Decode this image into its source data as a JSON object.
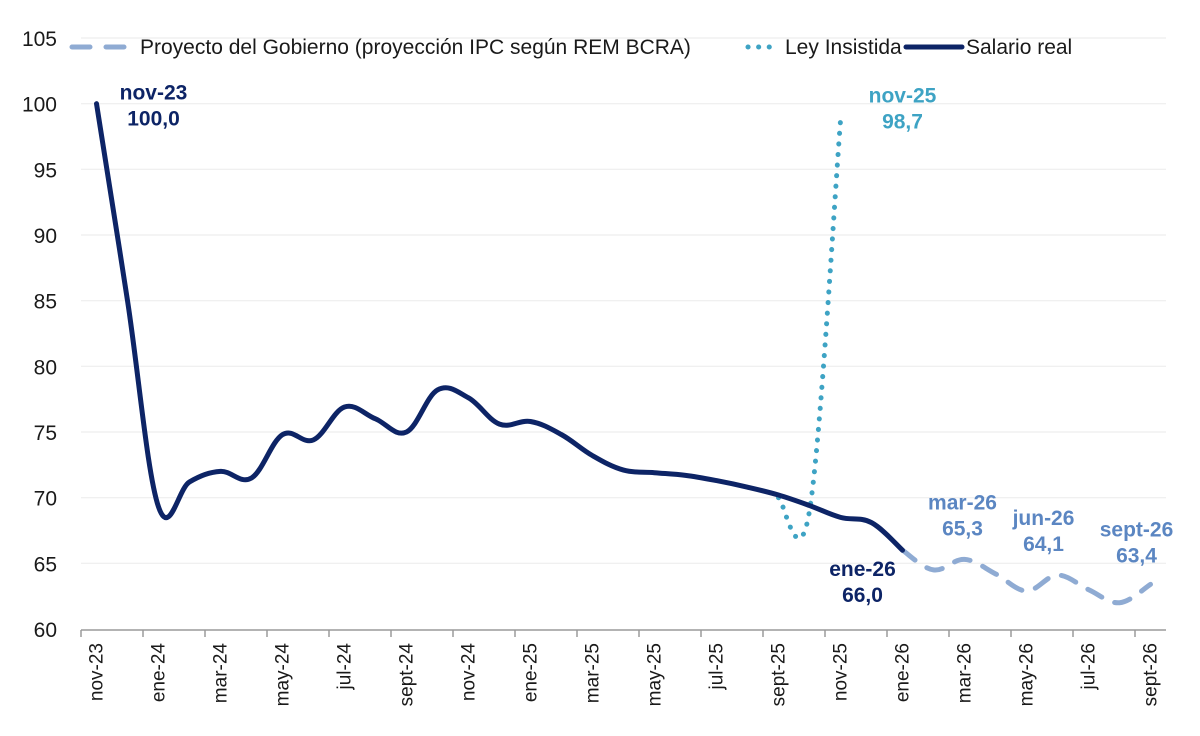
{
  "chart_data": {
    "type": "line",
    "title": "",
    "xlabel": "",
    "ylabel": "",
    "ylim": [
      60,
      105
    ],
    "yticks": [
      60,
      65,
      70,
      75,
      80,
      85,
      90,
      95,
      100,
      105
    ],
    "grid": true,
    "legend_position": "top",
    "months": [
      "nov-23",
      "dic-23",
      "ene-24",
      "feb-24",
      "mar-24",
      "abr-24",
      "may-24",
      "jun-24",
      "jul-24",
      "ago-24",
      "sept-24",
      "oct-24",
      "nov-24",
      "dic-24",
      "ene-25",
      "feb-25",
      "mar-25",
      "abr-25",
      "may-25",
      "jun-25",
      "jul-25",
      "ago-25",
      "sept-25",
      "oct-25",
      "nov-25",
      "dic-25",
      "ene-26",
      "feb-26",
      "mar-26",
      "abr-26",
      "may-26",
      "jun-26",
      "jul-26",
      "ago-26",
      "sept-26"
    ],
    "tick_labels": [
      "nov-23",
      "ene-24",
      "mar-24",
      "may-24",
      "jul-24",
      "sept-24",
      "nov-24",
      "ene-25",
      "mar-25",
      "may-25",
      "jul-25",
      "sept-25",
      "nov-25",
      "ene-26",
      "mar-26",
      "may-26",
      "jul-26",
      "sept-26"
    ],
    "series": [
      {
        "name": "Proyecto del Gobierno (proyección IPC según REM BCRA)",
        "style": "dashed",
        "color": "#8fabd3",
        "start_month": "ene-26",
        "values": [
          66.0,
          64.5,
          65.3,
          64.2,
          62.9,
          64.1,
          63.0,
          62.0,
          63.4
        ]
      },
      {
        "name": "Ley Insistida",
        "style": "dotted",
        "color": "#3ea3c4",
        "start_month": "sept-25",
        "values": [
          70.0,
          69.0,
          98.7
        ]
      },
      {
        "name": "Salario real",
        "style": "solid",
        "color": "#0d2466",
        "start_month": "nov-23",
        "values": [
          100.0,
          85.0,
          69.3,
          71.2,
          72.0,
          71.5,
          74.8,
          74.4,
          76.9,
          76.0,
          75.0,
          78.2,
          77.6,
          75.6,
          75.8,
          74.8,
          73.2,
          72.1,
          71.9,
          71.7,
          71.3,
          70.8,
          70.2,
          69.4,
          68.5,
          68.1,
          66.0
        ]
      }
    ],
    "annotations": [
      {
        "month": "nov-23",
        "value": 100.0,
        "label": "nov-23",
        "value_label": "100,0",
        "color": "#0d2466"
      },
      {
        "month": "nov-25",
        "value": 98.7,
        "label": "nov-25",
        "value_label": "98,7",
        "color": "#3ea3c4"
      },
      {
        "month": "ene-26",
        "value": 66.0,
        "label": "ene-26",
        "value_label": "66,0",
        "color": "#0d2466"
      },
      {
        "month": "mar-26",
        "value": 65.3,
        "label": "mar-26",
        "value_label": "65,3",
        "color": "#5b86c2"
      },
      {
        "month": "jun-26",
        "value": 64.1,
        "label": "jun-26",
        "value_label": "64,1",
        "color": "#5b86c2"
      },
      {
        "month": "sept-26",
        "value": 63.4,
        "label": "sept-26",
        "value_label": "63,4",
        "color": "#5b86c2"
      }
    ]
  }
}
